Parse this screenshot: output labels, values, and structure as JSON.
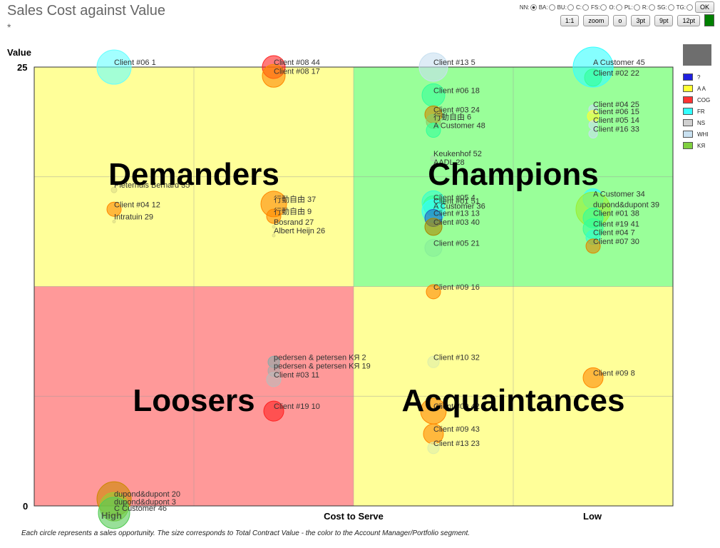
{
  "title": "Sales Cost against Value",
  "subtitle": "*",
  "controls": {
    "radios": [
      {
        "label": "NN:",
        "checked": true
      },
      {
        "label": "BA:",
        "checked": false
      },
      {
        "label": "BU:",
        "checked": false
      },
      {
        "label": "C:",
        "checked": false
      },
      {
        "label": "FS:",
        "checked": false
      },
      {
        "label": "O:",
        "checked": false
      },
      {
        "label": "PL:",
        "checked": false
      },
      {
        "label": "R:",
        "checked": false
      },
      {
        "label": "SG:",
        "checked": false
      },
      {
        "label": "TG:",
        "checked": false
      }
    ],
    "ok_label": "OK",
    "buttons": [
      "1:1",
      "zoom",
      "o",
      "3pt",
      "9pt",
      "12pt"
    ],
    "swatch_color": "#008000"
  },
  "legend": [
    {
      "label": "?",
      "color": "#2020e0"
    },
    {
      "label": "A A",
      "color": "#ffff33"
    },
    {
      "label": "COG",
      "color": "#ff3333"
    },
    {
      "label": "FR",
      "color": "#33ffff"
    },
    {
      "label": "NS",
      "color": "#d0d0d0"
    },
    {
      "label": "WHI",
      "color": "#c8e0f0"
    },
    {
      "label": "KЯ",
      "color": "#80d040"
    }
  ],
  "footnote": "Each circle represents a sales opportunity. The size corresponds to Total Contract Value - the color to the Account Manager/Portfolio segment.",
  "chart_data": {
    "type": "scatter",
    "title": "Sales Cost against Value",
    "xlabel": "Cost to Serve",
    "ylabel": "Value",
    "x_ticks": [
      "High",
      "Low"
    ],
    "y_ticks": [
      "0",
      "25"
    ],
    "xlim": [
      0,
      4
    ],
    "ylim": [
      0,
      25
    ],
    "grid": true,
    "quadrants": [
      {
        "label": "Demanders",
        "color": "#ffff99"
      },
      {
        "label": "Champions",
        "color": "#99ff99"
      },
      {
        "label": "Loosers",
        "color": "#ff9999"
      },
      {
        "label": "Acquaintances",
        "color": "#ffff99"
      }
    ],
    "points": [
      {
        "label": "Client #06 1",
        "x": 0.5,
        "y": 25,
        "size": 24,
        "color": "#66ffff"
      },
      {
        "label": "Client #08 44",
        "x": 1.5,
        "y": 25,
        "size": 16,
        "color": "#ff2222"
      },
      {
        "label": "Client #08 17",
        "x": 1.5,
        "y": 24.5,
        "size": 16,
        "color": "#ff8800"
      },
      {
        "label": "Client #13 5",
        "x": 2.5,
        "y": 25,
        "size": 20,
        "color": "#c8e0f0"
      },
      {
        "label": "A Customer 45",
        "x": 3.5,
        "y": 25,
        "size": 28,
        "color": "#33ffff"
      },
      {
        "label": "Client #02 22",
        "x": 3.5,
        "y": 24.4,
        "size": 12,
        "color": "#33ff99"
      },
      {
        "label": "Client #06 18",
        "x": 2.5,
        "y": 23.4,
        "size": 16,
        "color": "#33ff99"
      },
      {
        "label": "Client #03 24",
        "x": 2.5,
        "y": 22.3,
        "size": 12,
        "color": "#cc8800"
      },
      {
        "label": "行動自由 6",
        "x": 2.5,
        "y": 21.9,
        "size": 10,
        "color": "#88cc66"
      },
      {
        "label": "A Customer 48",
        "x": 2.5,
        "y": 21.4,
        "size": 10,
        "color": "#33ff99"
      },
      {
        "label": "Client #04 25",
        "x": 3.5,
        "y": 22.6,
        "size": 6,
        "color": "#c8e0f0"
      },
      {
        "label": "Client #06 15",
        "x": 3.5,
        "y": 22.2,
        "size": 8,
        "color": "#ffff33"
      },
      {
        "label": "Client #05 14",
        "x": 3.5,
        "y": 21.7,
        "size": 6,
        "color": "#c8e0f0"
      },
      {
        "label": "Client #16 33",
        "x": 3.5,
        "y": 21.2,
        "size": 6,
        "color": "#c8e0f0"
      },
      {
        "label": "Keukenhof 52",
        "x": 2.5,
        "y": 19.8,
        "size": 4,
        "color": "#aaddaa"
      },
      {
        "label": "AADL 28",
        "x": 2.5,
        "y": 19.3,
        "size": 4,
        "color": "#aaddaa"
      },
      {
        "label": "Pieterhuis Bernard 35",
        "x": 0.5,
        "y": 18.0,
        "size": 4,
        "color": "#dddd88"
      },
      {
        "label": "Client #04 12",
        "x": 0.5,
        "y": 16.9,
        "size": 10,
        "color": "#ff8800"
      },
      {
        "label": "Intratuin 29",
        "x": 0.5,
        "y": 16.2,
        "size": 2,
        "color": "#dddd88"
      },
      {
        "label": "行動自由 37",
        "x": 1.5,
        "y": 17.2,
        "size": 18,
        "color": "#ff8800"
      },
      {
        "label": "行動自由 9",
        "x": 1.5,
        "y": 16.5,
        "size": 10,
        "color": "#ff8800"
      },
      {
        "label": "Bosrand 27",
        "x": 1.5,
        "y": 15.9,
        "size": 2,
        "color": "#dddd88"
      },
      {
        "label": "Albert Heijn 26",
        "x": 1.5,
        "y": 15.4,
        "size": 2,
        "color": "#dddd88"
      },
      {
        "label": "Client #05 4",
        "x": 2.5,
        "y": 17.3,
        "size": 16,
        "color": "#33ffcc"
      },
      {
        "label": "Client #01 51",
        "x": 2.5,
        "y": 17.1,
        "size": 14,
        "color": "#33ff99"
      },
      {
        "label": "A Customer 36",
        "x": 2.5,
        "y": 16.8,
        "size": 16,
        "color": "#33ffff"
      },
      {
        "label": "Client #13 13",
        "x": 2.5,
        "y": 16.4,
        "size": 12,
        "color": "#2060c0"
      },
      {
        "label": "Client #03 40",
        "x": 2.5,
        "y": 15.9,
        "size": 12,
        "color": "#aa8800"
      },
      {
        "label": "Client #05 21",
        "x": 2.5,
        "y": 14.7,
        "size": 12,
        "color": "#88ee99"
      },
      {
        "label": "A Customer 34",
        "x": 3.5,
        "y": 17.5,
        "size": 14,
        "color": "#33ffff"
      },
      {
        "label": "dupond&dupont 39",
        "x": 3.5,
        "y": 16.9,
        "size": 24,
        "color": "#99ee33"
      },
      {
        "label": "Client #01 38",
        "x": 3.5,
        "y": 16.4,
        "size": 14,
        "color": "#33ff99"
      },
      {
        "label": "Client #19 41",
        "x": 3.5,
        "y": 15.8,
        "size": 14,
        "color": "#33ff99"
      },
      {
        "label": "Client #04 7",
        "x": 3.5,
        "y": 15.3,
        "size": 10,
        "color": "#33ffcc"
      },
      {
        "label": "Client #07 30",
        "x": 3.5,
        "y": 14.8,
        "size": 10,
        "color": "#dd8800"
      },
      {
        "label": "Client #09 16",
        "x": 2.5,
        "y": 12.2,
        "size": 10,
        "color": "#ff8800"
      },
      {
        "label": "pedersen & petersen KЯ 2",
        "x": 1.5,
        "y": 8.2,
        "size": 8,
        "color": "#88aaaa"
      },
      {
        "label": "pedersen & petersen KЯ 19",
        "x": 1.5,
        "y": 7.7,
        "size": 8,
        "color": "#aaaaaa"
      },
      {
        "label": "Client #03 11",
        "x": 1.5,
        "y": 7.2,
        "size": 10,
        "color": "#bbbbbb"
      },
      {
        "label": "Client #10 32",
        "x": 2.5,
        "y": 8.2,
        "size": 8,
        "color": "#ddeeaa"
      },
      {
        "label": "Client #09 8",
        "x": 3.5,
        "y": 7.3,
        "size": 14,
        "color": "#ff8800"
      },
      {
        "label": "Client #19 10",
        "x": 1.5,
        "y": 5.4,
        "size": 14,
        "color": "#ff2222"
      },
      {
        "label": "Client #09 42",
        "x": 2.5,
        "y": 5.4,
        "size": 18,
        "color": "#ff8800"
      },
      {
        "label": "Client #09 43",
        "x": 2.5,
        "y": 4.1,
        "size": 14,
        "color": "#ff8800"
      },
      {
        "label": "Client #13 23",
        "x": 2.5,
        "y": 3.3,
        "size": 8,
        "color": "#ddeeaa"
      },
      {
        "label": "dupond&dupont 20",
        "x": 0.5,
        "y": 0.4,
        "size": 24,
        "color": "#cc8800"
      },
      {
        "label": "dupond&dupont 3",
        "x": 0.5,
        "y": -0.05,
        "size": 20,
        "color": "#99cc33"
      },
      {
        "label": "C Customer 46",
        "x": 0.5,
        "y": -0.4,
        "size": 22,
        "color": "#55cc55"
      }
    ]
  }
}
